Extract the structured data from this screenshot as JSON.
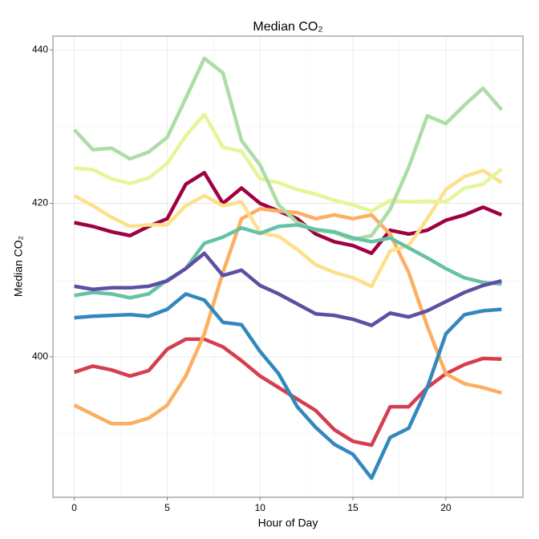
{
  "chart_data": {
    "type": "line",
    "title": "Median CO₂",
    "x_label": "Hour of Day",
    "y_label": "Median CO₂",
    "x": [
      0,
      1,
      2,
      3,
      4,
      5,
      6,
      7,
      8,
      9,
      10,
      11,
      12,
      13,
      14,
      15,
      16,
      17,
      18,
      19,
      20,
      21,
      22,
      23
    ],
    "xlim": [
      -1.15,
      24.15
    ],
    "xticks": [
      0,
      5,
      10,
      15,
      20
    ],
    "xminor": [
      2.5,
      7.5,
      12.5,
      17.5,
      22.5
    ],
    "ylim": [
      381.7,
      441.8
    ],
    "yticks": [
      400,
      420,
      440
    ],
    "yminor": [
      390,
      410,
      430
    ],
    "grid": true,
    "series": [
      {
        "color": "#9E0142",
        "values": [
          417.5,
          417,
          416.3,
          415.8,
          417,
          418,
          422.5,
          424,
          420,
          422,
          420,
          419,
          418,
          416,
          415,
          414.5,
          413.5,
          416.5,
          416,
          416.5,
          417.8,
          418.5,
          419.5,
          418.5
        ]
      },
      {
        "color": "#D53E4F",
        "values": [
          398,
          398.8,
          398.3,
          397.5,
          398.2,
          401,
          402.3,
          402.3,
          401.3,
          399.5,
          397.5,
          396,
          394.5,
          393,
          390.5,
          389,
          388.5,
          393.5,
          393.5,
          396,
          397.8,
          399,
          399.8,
          399.7
        ]
      },
      {
        "color": "#FDAE61",
        "values": [
          393.7,
          392.5,
          391.3,
          391.3,
          392,
          393.7,
          397.5,
          403,
          411,
          418,
          419.3,
          419,
          418.8,
          418,
          418.5,
          418,
          418.5,
          416,
          411,
          404,
          397.8,
          396.5,
          396,
          395.3
        ]
      },
      {
        "color": "#FEE08B",
        "values": [
          421,
          419.7,
          418.2,
          417,
          417.2,
          417.2,
          419.7,
          421,
          419.7,
          420.2,
          416.2,
          415.7,
          414,
          412,
          411,
          410.3,
          409.2,
          413.8,
          414.5,
          418,
          421.8,
          423.5,
          424.3,
          422.7
        ]
      },
      {
        "color": "#E6F598",
        "values": [
          424.6,
          424.4,
          423.2,
          422.6,
          423.3,
          425.2,
          428.8,
          431.6,
          427.3,
          426.8,
          423.2,
          422.7,
          421.8,
          421.2,
          420.4,
          419.8,
          419,
          420.4,
          420.2,
          420.3,
          420.2,
          422,
          422.5,
          424.5
        ]
      },
      {
        "color": "#ABDDA4",
        "values": [
          429.6,
          427,
          427.2,
          425.8,
          426.7,
          428.6,
          433.7,
          438.9,
          437,
          428.2,
          425,
          419.8,
          417.5,
          416.5,
          416.2,
          415.3,
          415.8,
          419.2,
          424.7,
          431.4,
          430.4,
          432.8,
          435,
          432.2
        ]
      },
      {
        "color": "#66C2A5",
        "values": [
          408,
          408.4,
          408.2,
          407.7,
          408.2,
          410,
          411.5,
          414.8,
          415.6,
          416.8,
          416.1,
          417,
          417.2,
          416.6,
          416.3,
          415.5,
          415,
          415.5,
          414.2,
          412.9,
          411.5,
          410.3,
          409.7,
          409.5
        ]
      },
      {
        "color": "#3288BD",
        "values": [
          405.1,
          405.3,
          405.4,
          405.5,
          405.3,
          406.2,
          408.2,
          407.4,
          404.5,
          404.2,
          400.7,
          397.8,
          393.5,
          390.8,
          388.6,
          387.3,
          384.2,
          389.5,
          390.7,
          396,
          403,
          405.5,
          406,
          406.2
        ]
      },
      {
        "color": "#5E4FA2",
        "values": [
          409.2,
          408.8,
          409,
          409,
          409.2,
          409.9,
          411.5,
          413.5,
          410.6,
          411.3,
          409.3,
          408.2,
          406.9,
          405.6,
          405.4,
          404.9,
          404.1,
          405.7,
          405.2,
          406,
          407.2,
          408.4,
          409.3,
          409.9
        ]
      }
    ]
  }
}
